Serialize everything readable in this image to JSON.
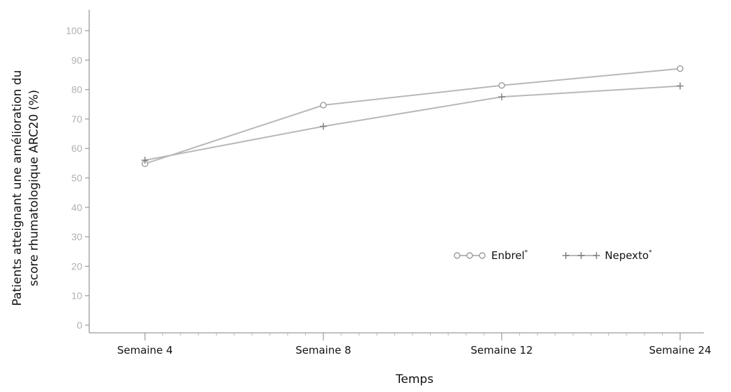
{
  "chart_data": {
    "type": "line",
    "title": "",
    "xlabel": "Temps",
    "ylabel": [
      "Patients atteignant une amélioration du",
      "score rhumatologique ARC20 (%)"
    ],
    "categories": [
      "Semaine 4",
      "Semaine 8",
      "Semaine 12",
      "Semaine 24"
    ],
    "ylim": [
      0,
      100
    ],
    "yticks": [
      0,
      10,
      20,
      30,
      40,
      50,
      60,
      70,
      80,
      90,
      100
    ],
    "grid": false,
    "legend_position": "center-right",
    "series": [
      {
        "name": "Enbrel",
        "name_superscript": "*",
        "marker": "circle",
        "color": "#b8b8b8",
        "values": [
          54.8,
          74.7,
          81.4,
          87.1
        ]
      },
      {
        "name": "Nepexto",
        "name_superscript": "*",
        "marker": "plus",
        "color": "#b8b8b8",
        "values": [
          56.0,
          67.5,
          77.5,
          81.2
        ]
      }
    ]
  }
}
